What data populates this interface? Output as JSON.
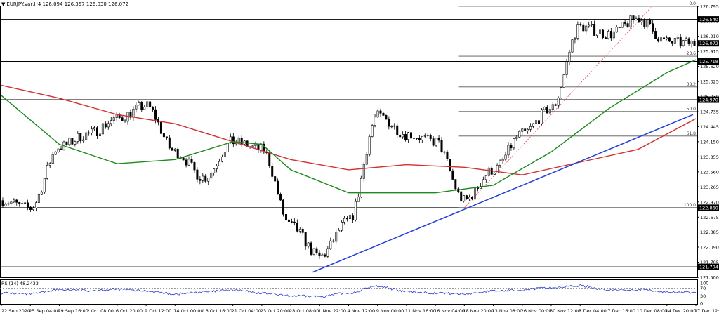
{
  "header": {
    "symbol": "EURJPY.var,H4",
    "ohlc": "126.094 126.357 126.030 126.072"
  },
  "colors": {
    "candle": "#000000",
    "ma_slow": "#d23030",
    "ma_fast": "#1c8a1c",
    "trendline": "#1f3fd8",
    "fib": "#555555",
    "fib_diag": "#e05050",
    "rsi_line": "#2a3ad0",
    "price_label_bg": "#000000",
    "price_label_fg": "#ffffff"
  },
  "chart_data": [
    {
      "type": "candlestick",
      "title": "",
      "x_tick_labels": [
        "22 Sep 2020",
        "25 Sep 04:00",
        "29 Sep 16:00",
        "2 Oct 08:00",
        "6 Oct 20:00",
        "9 Oct 12:00",
        "14 Oct 00:00",
        "16 Oct 16:00",
        "21 Oct 04:00",
        "23 Oct 20:00",
        "28 Oct 08:00",
        "1 Nov 22:00",
        "4 Nov 12:00",
        "9 Nov 00:00",
        "11 Nov 16:00",
        "16 Nov 04:00",
        "18 Nov 20:00",
        "23 Nov 08:00",
        "26 Nov 00:00",
        "30 Nov 12:00",
        "3 Dec 04:00",
        "7 Dec 16:00",
        "10 Dec 08:00",
        "14 Dec 20:00",
        "17 Dec 12:00"
      ],
      "y_tick_labels": [
        "126.795",
        "126.505",
        "126.210",
        "125.915",
        "125.620",
        "125.325",
        "125.030",
        "124.735",
        "124.445",
        "124.150",
        "123.855",
        "123.560",
        "123.265",
        "122.970",
        "122.675",
        "122.385",
        "122.090",
        "121.795",
        "121.500"
      ],
      "ylim": [
        121.5,
        126.795
      ],
      "current_price": "126.072",
      "horizontal_levels": [
        "126.540",
        "125.718",
        "124.970",
        "122.860",
        "121.704"
      ],
      "fibonacci": [
        {
          "label": "0.0",
          "price": 126.795
        },
        {
          "label": "23.6",
          "price": 125.82
        },
        {
          "label": "38.2",
          "price": 125.22
        },
        {
          "label": "50.0",
          "price": 124.74
        },
        {
          "label": "61.8",
          "price": 124.26
        },
        {
          "label": "100.0",
          "price": 122.86
        }
      ],
      "trendline": {
        "from": {
          "x": "1 Nov 22:00",
          "y": 121.6
        },
        "to": {
          "x": "17 Dec 12:00",
          "y": 124.68
        }
      },
      "close_path": [
        [
          "22 Sep 2020",
          123.0
        ],
        [
          "25 Sep 04:00",
          122.85
        ],
        [
          "29 Sep 16:00",
          124.05
        ],
        [
          "2 Oct 08:00",
          124.3
        ],
        [
          "6 Oct 20:00",
          124.6
        ],
        [
          "9 Oct 12:00",
          124.85
        ],
        [
          "14 Oct 00:00",
          123.95
        ],
        [
          "16 Oct 16:00",
          123.45
        ],
        [
          "21 Oct 04:00",
          124.15
        ],
        [
          "23 Oct 20:00",
          124.0
        ],
        [
          "28 Oct 08:00",
          122.5
        ],
        [
          "1 Nov 22:00",
          121.9
        ],
        [
          "4 Nov 12:00",
          122.6
        ],
        [
          "9 Nov 00:00",
          124.65
        ],
        [
          "11 Nov 16:00",
          124.3
        ],
        [
          "16 Nov 04:00",
          124.15
        ],
        [
          "18 Nov 20:00",
          123.0
        ],
        [
          "23 Nov 08:00",
          123.6
        ],
        [
          "26 Nov 00:00",
          124.3
        ],
        [
          "30 Nov 12:00",
          124.8
        ],
        [
          "3 Dec 04:00",
          126.4
        ],
        [
          "7 Dec 16:00",
          126.25
        ],
        [
          "10 Dec 08:00",
          126.55
        ],
        [
          "14 Dec 20:00",
          126.1
        ],
        [
          "17 Dec 12:00",
          126.07
        ]
      ],
      "ma_slow_path": [
        [
          "22 Sep 2020",
          125.25
        ],
        [
          "29 Sep 16:00",
          125.0
        ],
        [
          "6 Oct 20:00",
          124.68
        ],
        [
          "14 Oct 00:00",
          124.5
        ],
        [
          "21 Oct 04:00",
          124.15
        ],
        [
          "28 Oct 08:00",
          123.8
        ],
        [
          "4 Nov 12:00",
          123.6
        ],
        [
          "11 Nov 16:00",
          123.7
        ],
        [
          "18 Nov 20:00",
          123.65
        ],
        [
          "26 Nov 00:00",
          123.5
        ],
        [
          "3 Dec 04:00",
          123.75
        ],
        [
          "10 Dec 08:00",
          124.0
        ],
        [
          "17 Dec 12:00",
          124.6
        ]
      ],
      "ma_fast_path": [
        [
          "22 Sep 2020",
          125.05
        ],
        [
          "29 Sep 16:00",
          124.1
        ],
        [
          "6 Oct 20:00",
          123.72
        ],
        [
          "14 Oct 00:00",
          123.8
        ],
        [
          "21 Oct 04:00",
          124.15
        ],
        [
          "23 Oct 20:00",
          124.1
        ],
        [
          "28 Oct 08:00",
          123.6
        ],
        [
          "4 Nov 12:00",
          123.15
        ],
        [
          "9 Nov 00:00",
          123.15
        ],
        [
          "16 Nov 04:00",
          123.15
        ],
        [
          "23 Nov 08:00",
          123.3
        ],
        [
          "30 Nov 12:00",
          123.95
        ],
        [
          "7 Dec 16:00",
          124.8
        ],
        [
          "14 Dec 20:00",
          125.5
        ],
        [
          "17 Dec 12:00",
          125.75
        ]
      ]
    },
    {
      "type": "line",
      "title": "RSI(14) 48.2433",
      "y_tick_labels": [
        "100",
        "70",
        "30",
        "0"
      ],
      "ylim": [
        0,
        100
      ],
      "levels": [
        70,
        30
      ],
      "values_path": [
        [
          "22 Sep 2020",
          45
        ],
        [
          "25 Sep 04:00",
          40
        ],
        [
          "29 Sep 16:00",
          62
        ],
        [
          "2 Oct 08:00",
          58
        ],
        [
          "6 Oct 20:00",
          64
        ],
        [
          "9 Oct 12:00",
          55
        ],
        [
          "14 Oct 00:00",
          40
        ],
        [
          "16 Oct 16:00",
          50
        ],
        [
          "21 Oct 04:00",
          60
        ],
        [
          "23 Oct 20:00",
          45
        ],
        [
          "28 Oct 08:00",
          30
        ],
        [
          "1 Nov 22:00",
          28
        ],
        [
          "4 Nov 12:00",
          45
        ],
        [
          "9 Nov 00:00",
          80
        ],
        [
          "11 Nov 16:00",
          52
        ],
        [
          "16 Nov 04:00",
          45
        ],
        [
          "18 Nov 20:00",
          40
        ],
        [
          "23 Nov 08:00",
          55
        ],
        [
          "26 Nov 00:00",
          62
        ],
        [
          "30 Nov 12:00",
          72
        ],
        [
          "3 Dec 04:00",
          82
        ],
        [
          "7 Dec 16:00",
          60
        ],
        [
          "10 Dec 08:00",
          62
        ],
        [
          "14 Dec 20:00",
          50
        ],
        [
          "17 Dec 12:00",
          48
        ]
      ]
    }
  ]
}
